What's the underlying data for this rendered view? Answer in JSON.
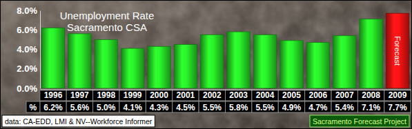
{
  "chart_data": {
    "type": "bar",
    "title": "Unemployment Rate",
    "subtitle": "Sacramento CSA",
    "categories": [
      "1996",
      "1997",
      "1998",
      "1999",
      "2000",
      "2001",
      "2002",
      "2003",
      "2004",
      "2005",
      "2006",
      "2007",
      "2008",
      "2009"
    ],
    "values": [
      6.2,
      5.6,
      5.0,
      4.1,
      4.3,
      4.5,
      5.5,
      5.8,
      5.5,
      4.9,
      4.7,
      5.4,
      7.1,
      7.7
    ],
    "value_labels": [
      "6.2%",
      "5.6%",
      "5.0%",
      "4.1%",
      "4.3%",
      "4.5%",
      "5.5%",
      "5.8%",
      "5.5%",
      "4.9%",
      "4.7%",
      "5.4%",
      "7.1%",
      "7.7%"
    ],
    "colors": [
      "#22cc22",
      "#22cc22",
      "#22cc22",
      "#22cc22",
      "#22cc22",
      "#22cc22",
      "#22cc22",
      "#22cc22",
      "#22cc22",
      "#22cc22",
      "#22cc22",
      "#22cc22",
      "#22cc22",
      "#dd1111"
    ],
    "ylim": [
      0,
      8
    ],
    "yticks": [
      {
        "value": 0,
        "label": "0.0%"
      },
      {
        "value": 2,
        "label": "2.0%"
      },
      {
        "value": 4,
        "label": "4.0%"
      },
      {
        "value": 6,
        "label": "6.0%"
      },
      {
        "value": 8,
        "label": "8.0%"
      }
    ],
    "grid": false,
    "data_labels": true,
    "annotations": [
      "Forecast",
      "%",
      "data: CA-EDD, LMI & NV--Workforce Informer",
      "Sacramento Forecast Project"
    ]
  }
}
